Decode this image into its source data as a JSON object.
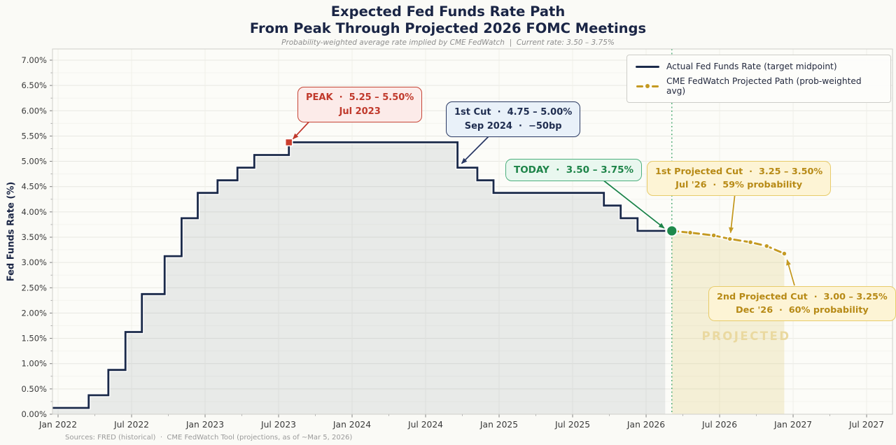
{
  "header": {
    "title_line1": "Expected Fed Funds Rate Path",
    "title_line2": "From Peak Through Projected 2026 FOMC Meetings",
    "subtitle": "Probability-weighted average rate implied by CME FedWatch  |  Current rate: 3.50 – 3.75%"
  },
  "axis": {
    "y_label": "Fed Funds Rate (%)"
  },
  "legend": {
    "items": [
      {
        "label": "Actual Fed Funds Rate (target midpoint)",
        "color": "#1b2a4a",
        "style": "solid"
      },
      {
        "label": "CME FedWatch Projected Path (prob-weighted avg)",
        "color": "#c49a22",
        "style": "dash-dot"
      }
    ]
  },
  "annotations": {
    "peak": {
      "line1": "PEAK  ·  5.25 – 5.50%",
      "line2": "Jul 2023",
      "color": "#c0392b"
    },
    "first_cut": {
      "line1": "1st Cut  ·  4.75 – 5.00%",
      "line2": "Sep 2024  ·  −50bp",
      "color": "#1f2d50"
    },
    "today": {
      "line1": "TODAY  ·  3.50 – 3.75%",
      "color": "#1e8449"
    },
    "proj_cut_1": {
      "line1": "1st Projected Cut  ·  3.25 – 3.50%",
      "line2": "Jul '26  ·  59% probability",
      "color": "#b78a16"
    },
    "proj_cut_2": {
      "line1": "2nd Projected Cut  ·  3.00 – 3.25%",
      "line2": "Dec '26  ·  60% probability",
      "color": "#b78a16"
    },
    "watermark": "PROJECTED"
  },
  "footer": {
    "sources": "Sources: FRED (historical)  ·  CME FedWatch Tool (projections, as of ~Mar 5, 2026)"
  },
  "chart_data": {
    "type": "line",
    "title": "Expected Fed Funds Rate Path From Peak Through Projected 2026 FOMC Meetings",
    "xlabel": "",
    "ylabel": "Fed Funds Rate (%)",
    "x_domain": [
      2021.962,
      2027.676
    ],
    "y_domain": [
      0,
      7.221
    ],
    "grid": true,
    "legend_position": "upper right",
    "x_ticks": [
      {
        "v": 2022.0,
        "label": "Jan 2022"
      },
      {
        "v": 2022.5,
        "label": "Jul 2022"
      },
      {
        "v": 2023.0,
        "label": "Jan 2023"
      },
      {
        "v": 2023.5,
        "label": "Jul 2023"
      },
      {
        "v": 2024.0,
        "label": "Jan 2024"
      },
      {
        "v": 2024.5,
        "label": "Jul 2024"
      },
      {
        "v": 2025.0,
        "label": "Jan 2025"
      },
      {
        "v": 2025.5,
        "label": "Jul 2025"
      },
      {
        "v": 2026.0,
        "label": "Jan 2026"
      },
      {
        "v": 2026.5,
        "label": "Jul 2026"
      },
      {
        "v": 2027.0,
        "label": "Jan 2027"
      },
      {
        "v": 2027.5,
        "label": "Jul 2027"
      }
    ],
    "y_ticks": [
      {
        "v": 0.0,
        "label": "0.00%"
      },
      {
        "v": 0.5,
        "label": "0.50%"
      },
      {
        "v": 1.0,
        "label": "1.00%"
      },
      {
        "v": 1.5,
        "label": "1.50%"
      },
      {
        "v": 2.0,
        "label": "2.00%"
      },
      {
        "v": 2.5,
        "label": "2.50%"
      },
      {
        "v": 3.0,
        "label": "3.00%"
      },
      {
        "v": 3.5,
        "label": "3.50%"
      },
      {
        "v": 4.0,
        "label": "4.00%"
      },
      {
        "v": 4.5,
        "label": "4.50%"
      },
      {
        "v": 5.0,
        "label": "5.00%"
      },
      {
        "v": 5.5,
        "label": "5.50%"
      },
      {
        "v": 6.0,
        "label": "6.00%"
      },
      {
        "v": 6.5,
        "label": "6.50%"
      },
      {
        "v": 7.0,
        "label": "7.00%"
      }
    ],
    "series": [
      {
        "name": "Actual Fed Funds Rate (target midpoint)",
        "mode": "step-post",
        "color": "#1b2a4a",
        "fill_color": "#5d6b7a",
        "fill_opacity": 0.12,
        "end_x": 2026.13,
        "points": [
          [
            2022.0,
            0.125
          ],
          [
            2022.208,
            0.375
          ],
          [
            2022.342,
            0.875
          ],
          [
            2022.458,
            1.625
          ],
          [
            2022.57,
            2.375
          ],
          [
            2022.725,
            3.125
          ],
          [
            2022.84,
            3.875
          ],
          [
            2022.95,
            4.375
          ],
          [
            2023.085,
            4.625
          ],
          [
            2023.22,
            4.875
          ],
          [
            2023.335,
            5.125
          ],
          [
            2023.57,
            5.375
          ],
          [
            2024.717,
            4.875
          ],
          [
            2024.852,
            4.625
          ],
          [
            2024.962,
            4.375
          ],
          [
            2025.713,
            4.125
          ],
          [
            2025.827,
            3.875
          ],
          [
            2025.942,
            3.625
          ]
        ]
      },
      {
        "name": "CME FedWatch Projected Path (prob-weighted avg)",
        "mode": "dashed-dots",
        "color": "#c49a22",
        "fill_color": "#d9c35e",
        "fill_opacity": 0.22,
        "points": [
          [
            2026.175,
            3.625
          ],
          [
            2026.3,
            3.59
          ],
          [
            2026.46,
            3.535
          ],
          [
            2026.57,
            3.465
          ],
          [
            2026.71,
            3.4
          ],
          [
            2026.82,
            3.325
          ],
          [
            2026.94,
            3.175
          ]
        ]
      }
    ],
    "today_line_x": 2026.175,
    "markers": {
      "peak_square": {
        "x": 2023.57,
        "y": 5.375,
        "color": "#cb3e2e"
      },
      "today_dot": {
        "x": 2026.175,
        "y": 3.625,
        "color": "#1f8a4c"
      }
    },
    "annotation_targets": {
      "peak": [
        2023.57,
        5.375
      ],
      "first_cut": [
        2024.717,
        4.875
      ],
      "today": [
        2026.175,
        3.625
      ],
      "proj_cut_1": [
        2026.57,
        3.465
      ],
      "proj_cut_2": [
        2026.94,
        3.175
      ]
    }
  }
}
